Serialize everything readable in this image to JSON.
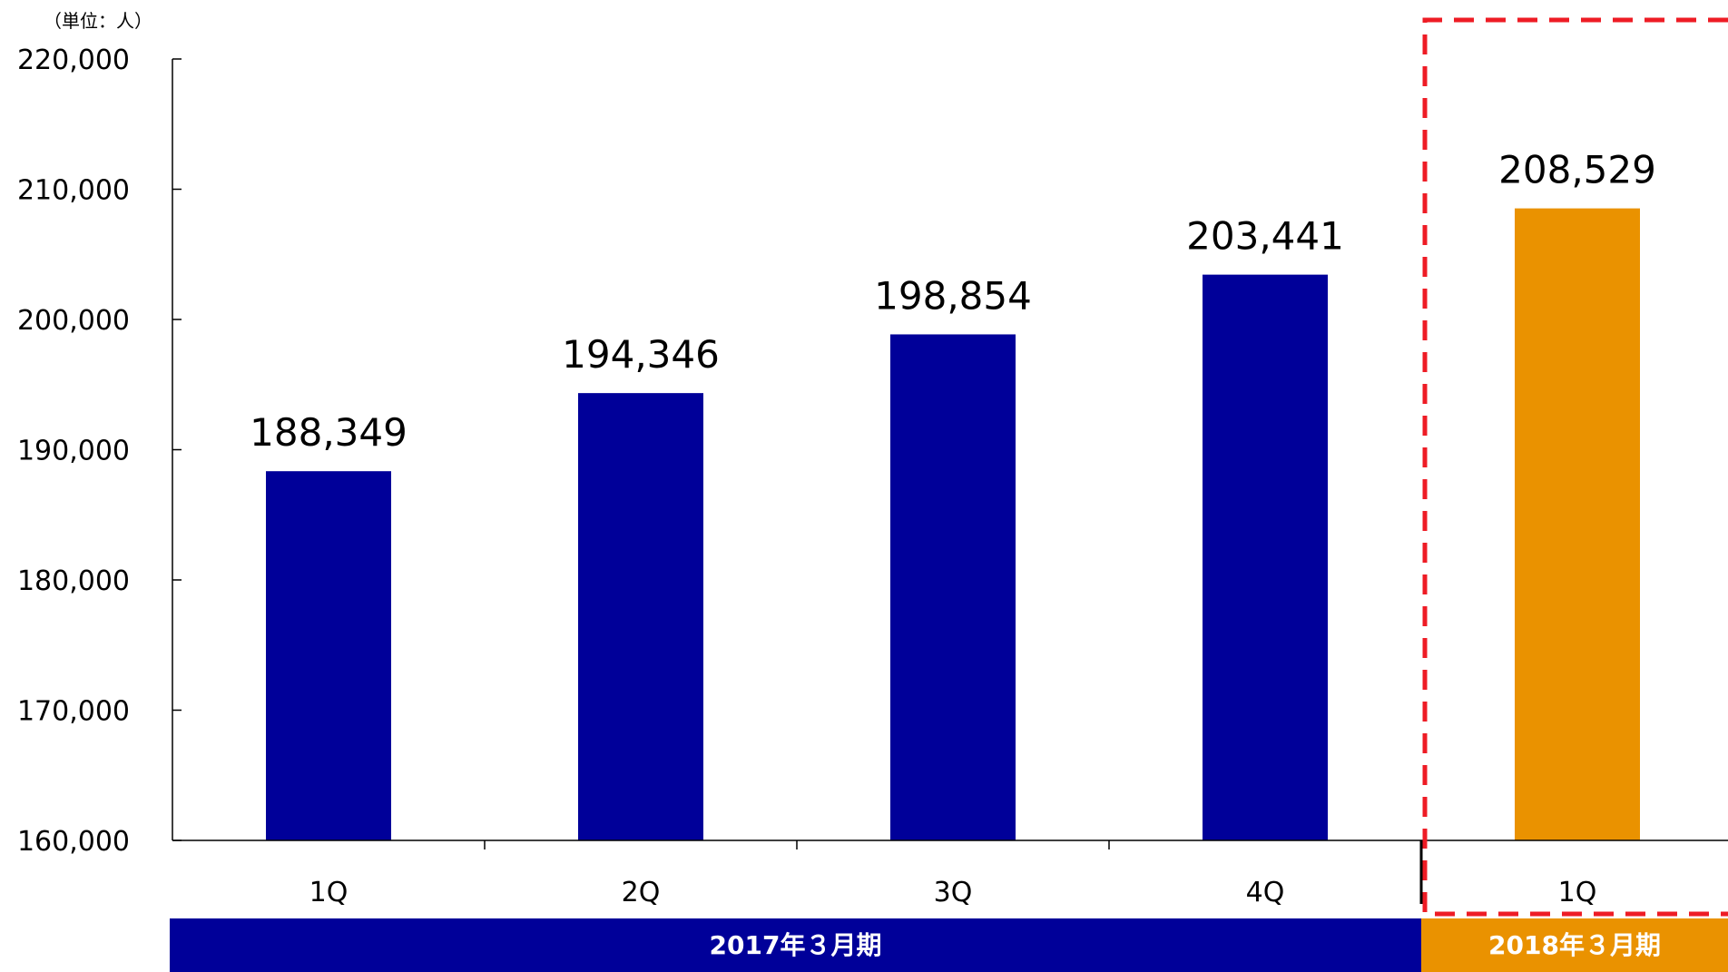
{
  "chart_data": {
    "type": "bar",
    "unit_label": "（単位：人）",
    "categories": [
      "1Q",
      "2Q",
      "3Q",
      "4Q",
      "1Q"
    ],
    "values": [
      188349,
      194346,
      198854,
      203441,
      208529
    ],
    "value_labels": [
      "188,349",
      "194,346",
      "198,854",
      "203,441",
      "208,529"
    ],
    "bar_colors": [
      "#000099",
      "#000099",
      "#000099",
      "#000099",
      "#EA9200"
    ],
    "ylim": [
      160000,
      220000
    ],
    "yticks": [
      160000,
      170000,
      180000,
      190000,
      200000,
      210000,
      220000
    ],
    "ytick_labels": [
      "160,000",
      "170,000",
      "180,000",
      "190,000",
      "200,000",
      "210,000",
      "220,000"
    ],
    "grid": false,
    "periods": [
      {
        "label": "2017年３月期",
        "categories": [
          0,
          1,
          2,
          3
        ],
        "color": "#000099"
      },
      {
        "label": "2018年３月期",
        "categories": [
          4
        ],
        "color": "#EA9200"
      }
    ],
    "highlight": {
      "categories": [
        4
      ],
      "color": "#EE1C25",
      "style": "dashed"
    }
  }
}
